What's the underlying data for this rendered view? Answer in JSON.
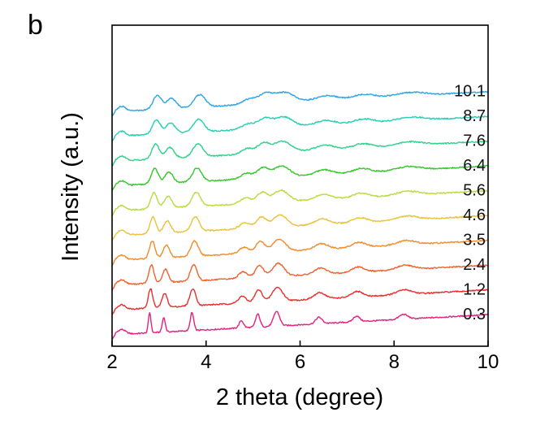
{
  "panel_label": "b",
  "chart_data": {
    "type": "line",
    "xlabel": "2 theta (degree)",
    "ylabel": "Intensity (a.u.)",
    "xlim": [
      2,
      10
    ],
    "xticks": [
      2,
      4,
      6,
      8,
      10
    ],
    "yaxis_ticks": false,
    "grid": false,
    "legend": "none",
    "peaks_common": [
      {
        "x": 2.8,
        "h": 1.25,
        "w": 0.06
      },
      {
        "x": 3.1,
        "h": 0.9,
        "w": 0.07
      },
      {
        "x": 3.7,
        "h": 1.1,
        "w": 0.08
      },
      {
        "x": 4.75,
        "h": 0.45,
        "w": 0.1
      },
      {
        "x": 5.1,
        "h": 0.8,
        "w": 0.1
      },
      {
        "x": 5.5,
        "h": 0.9,
        "w": 0.14
      },
      {
        "x": 6.4,
        "h": 0.4,
        "w": 0.15
      },
      {
        "x": 7.2,
        "h": 0.35,
        "w": 0.15
      },
      {
        "x": 8.2,
        "h": 0.3,
        "w": 0.2
      }
    ],
    "series": [
      {
        "name": "0.3",
        "color": "#e6207f"
      },
      {
        "name": "1.2",
        "color": "#ec2d2d"
      },
      {
        "name": "2.4",
        "color": "#f0622f"
      },
      {
        "name": "3.5",
        "color": "#f28b2b"
      },
      {
        "name": "4.6",
        "color": "#e9c23a"
      },
      {
        "name": "5.6",
        "color": "#b7dc3e"
      },
      {
        "name": "6.4",
        "color": "#35c62a"
      },
      {
        "name": "7.6",
        "color": "#2ed08c"
      },
      {
        "name": "8.7",
        "color": "#24cfb2"
      },
      {
        "name": "10.1",
        "color": "#2aa5e6"
      }
    ]
  }
}
